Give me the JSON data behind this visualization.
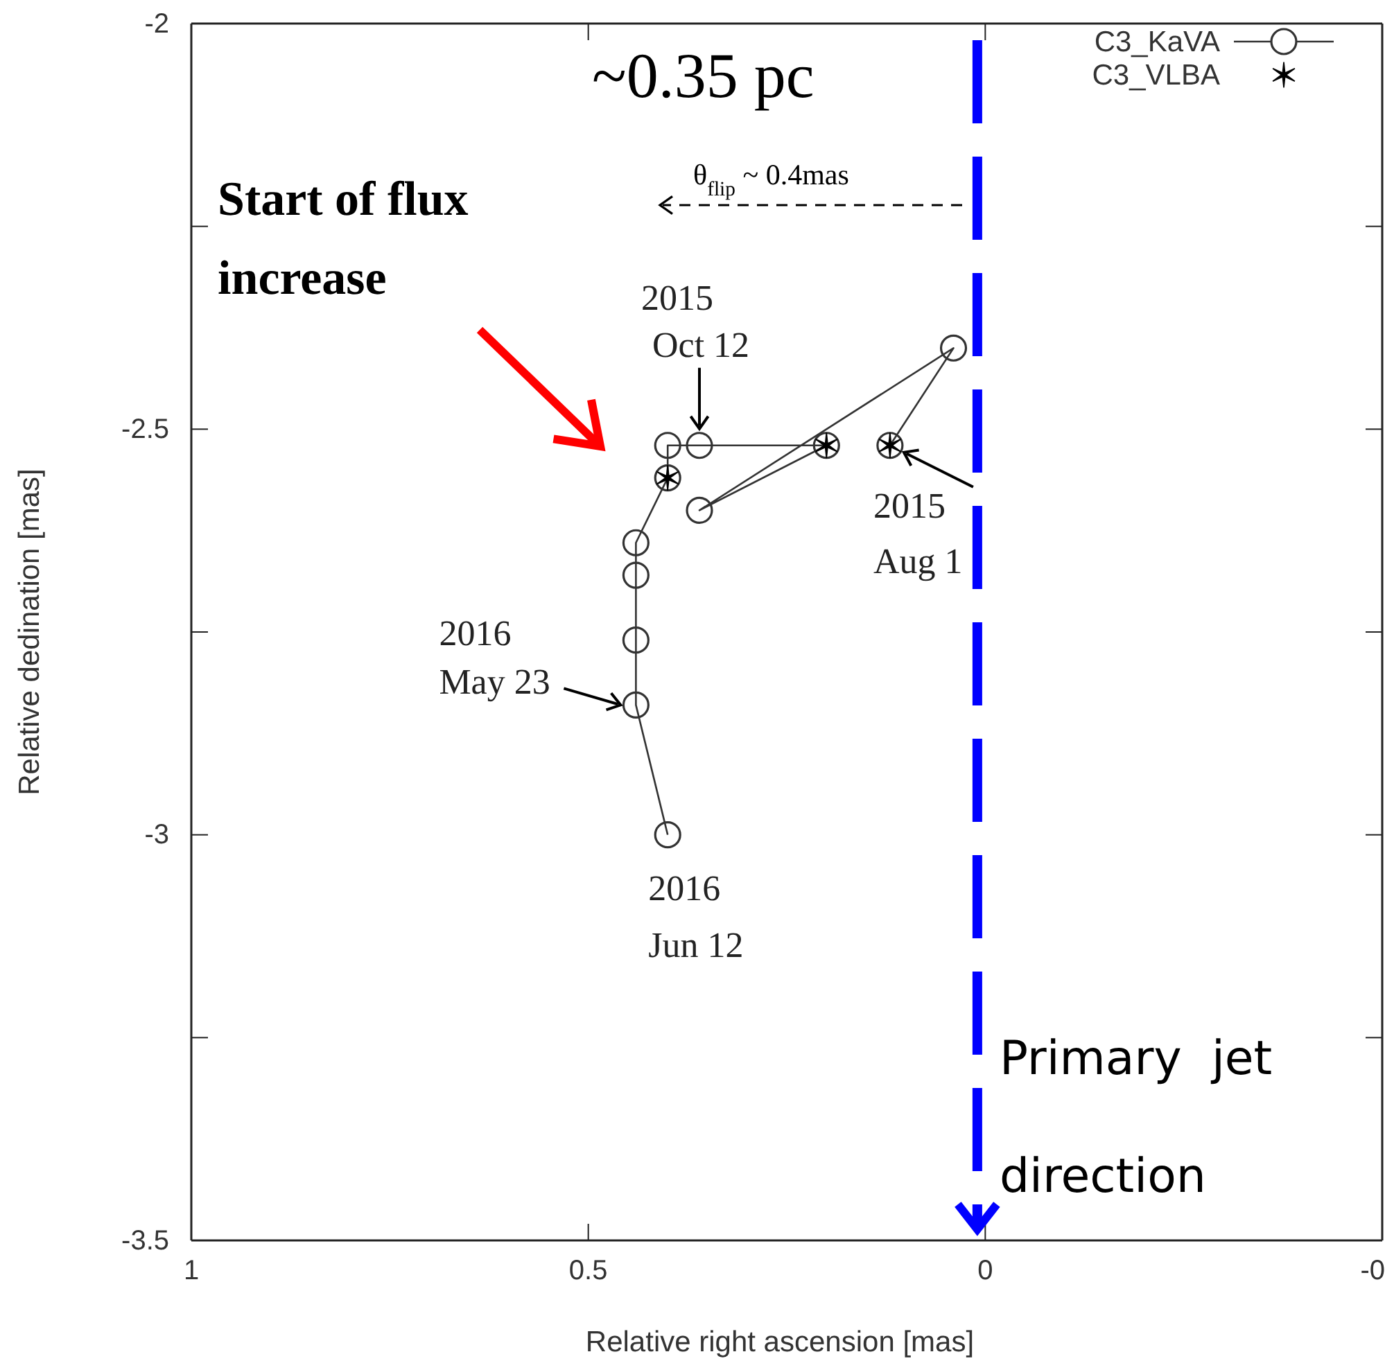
{
  "chart_data": {
    "type": "line",
    "xlabel": "Relative right ascension [mas]",
    "ylabel": "Relative dedination [mas]",
    "xlim": [
      1,
      -0.5
    ],
    "ylim": [
      -3.5,
      -2
    ],
    "xticks": [
      1,
      0.5,
      0,
      {
        "value": -0.5,
        "label": "-0"
      }
    ],
    "yticks": [
      -3.5,
      {
        "value": -3.25,
        "label": null
      },
      -3,
      {
        "value": -2.75,
        "label": null
      },
      -2.5,
      {
        "value": -2.25,
        "label": null
      },
      -2
    ],
    "grid": false,
    "legend": "top right",
    "series": [
      {
        "name": "C3_KaVA",
        "type": "line",
        "color": "#333333",
        "marker": "circle",
        "line_style": "solid",
        "x": [
          0.12,
          0.04,
          0.36,
          0.2,
          0.36,
          0.4,
          0.4,
          0.44,
          0.44,
          0.44,
          0.44,
          0.4
        ],
        "values": [
          -2.52,
          -2.4,
          -2.6,
          -2.52,
          -2.52,
          -2.52,
          -2.56,
          -2.64,
          -2.68,
          -2.76,
          -2.84,
          -3.0
        ]
      },
      {
        "name": "C3_VLBA",
        "type": "scatter",
        "color": "#000000",
        "marker": "cross",
        "x": [
          0.12,
          0.2,
          0.4
        ],
        "values": [
          -2.52,
          -2.52,
          -2.56
        ]
      }
    ],
    "ref_lines": [
      {
        "axis": "x",
        "value": 0.01,
        "label": "Primary  jet direction",
        "color": "#0000ff",
        "line_style": "dashed"
      }
    ],
    "annotations": [
      "~0.35 pc",
      "θ$_{flip}$ ~ 0.4mas",
      "Start of flux increase",
      {
        "text": "2015 Oct 12",
        "x": 0.36,
        "y": -2.52
      },
      {
        "text": "2015 Aug 1",
        "x": 0.12,
        "y": -2.52
      },
      {
        "text": "2016 May 23",
        "x": 0.44,
        "y": -2.84
      },
      {
        "text": "2016 Jun 12",
        "x": 0.4,
        "y": -3.0
      }
    ]
  }
}
